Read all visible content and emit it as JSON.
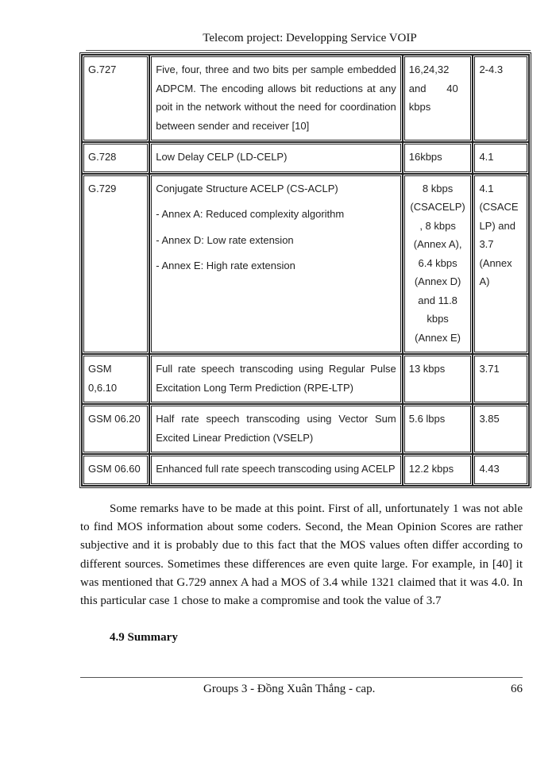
{
  "header": {
    "title": "Telecom project: Developping Service VOIP"
  },
  "table": {
    "rows": [
      {
        "codec": "G.727",
        "description": "Five, four, three and two bits per sample embedded ADPCM. The encoding allows bit reductions at any poit in the network without the need for coordination between sender and receiver [10]",
        "bitrate": "16,24,32 and 40 kbps",
        "mos": "2-4.3"
      },
      {
        "codec": "G.728",
        "description": "Low Delay CELP (LD-CELP)",
        "bitrate": "16kbps",
        "mos": "4.1"
      },
      {
        "codec": "G.729",
        "description": "Conjugate Structure ACELP (CS-ACLP)",
        "annexes": [
          "- Annex A: Reduced complexity algorithm",
          "- Annex D: Low rate extension",
          "- Annex E: High rate extension"
        ],
        "bitrate": "8 kbps\n(CSACELP)\n, 8 kbps\n(Annex A),\n6.4 kbps\n(Annex D)\nand 11.8\nkbps\n(Annex E)",
        "mos": "4.1\n(CSACE\nLP) and\n3.7\n(Annex\nA)"
      },
      {
        "codec": "GSM 0,6.10",
        "description": "Full rate speech transcoding using Regular Pulse Excitation Long Term Prediction (RPE-LTP)",
        "bitrate": "13 kbps",
        "mos": "3.71"
      },
      {
        "codec": "GSM 06.20",
        "description": "Half rate speech transcoding using Vector Sum Excited Linear Prediction (VSELP)",
        "bitrate": "5.6 lbps",
        "mos": "3.85"
      },
      {
        "codec": "GSM 06.60",
        "description": "Enhanced full rate speech transcoding using ACELP",
        "bitrate": "12.2 kbps",
        "mos": "4.43"
      }
    ]
  },
  "body": {
    "paragraph": "Some remarks have to be made at this point. First of all, unfortunately 1 was not able to find MOS information about some coders. Second, the Mean Opinion Scores are rather subjective and it is probably due to this fact that the MOS values often differ according to different sources. Sometimes these differences are even quite large. For example, in [40] it was mentioned that G.729 annex A had a MOS of 3.4 while 1321 claimed that it was 4.0. In this particular case 1 chose to make a compromise and took the value of 3.7",
    "section_heading": "4.9 Summary"
  },
  "footer": {
    "group": "Groups 3 - Đồng Xuân Thắng - cap.",
    "page_number": "66"
  }
}
